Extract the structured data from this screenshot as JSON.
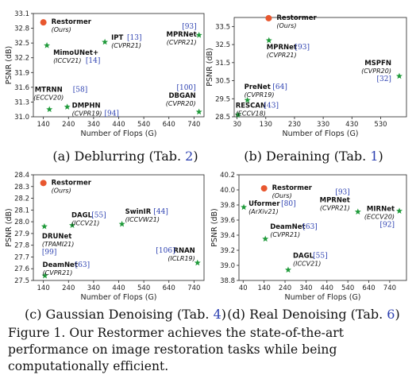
{
  "figure": {
    "caption_label": "Figure 1.",
    "caption_text": "Our Restormer achieves the state-of-the-art performance on image restoration tasks while being computationally efficient."
  },
  "styles": {
    "proposed_color": "#e8572f",
    "baseline_color": "#1f9a3a",
    "ref_color": "#2b3fb0"
  },
  "chart_data": [
    {
      "type": "scatter",
      "caption": {
        "text": "(a) Deblurring (Tab.",
        "ref": "2",
        "close": ")"
      },
      "xlabel": "Number of Flops (G)",
      "ylabel": "PSNR (dB)",
      "xlim": [
        100,
        780
      ],
      "ylim": [
        31.0,
        33.1
      ],
      "xticks": [
        140,
        240,
        340,
        440,
        540,
        640,
        740
      ],
      "yticks": [
        31.0,
        31.3,
        31.6,
        31.9,
        32.2,
        32.5,
        32.8,
        33.1
      ],
      "grid": false,
      "points": [
        {
          "name": "Restormer",
          "sub": "(Ours)",
          "x": 140,
          "y": 32.92,
          "proposed": true
        },
        {
          "name": "MimoUNet+",
          "sub": "(ICCV21)",
          "ref": "[14]",
          "x": 154,
          "y": 32.45
        },
        {
          "name": "IPT",
          "sub": "(CVPR21)",
          "ref": "[13]",
          "x": 385,
          "y": 32.52
        },
        {
          "name": "MPRNet",
          "sub": "(CVPR21)",
          "ref": "[93]",
          "x": 760,
          "y": 32.66
        },
        {
          "name": "MTRNN",
          "sub": "(ECCV20)",
          "ref": "[58]",
          "x": 164,
          "y": 31.15
        },
        {
          "name": "DMPHN",
          "sub": "(CVPR19)",
          "ref": "[94]",
          "x": 235,
          "y": 31.2
        },
        {
          "name": "DBGAN",
          "sub": "(CVPR20)",
          "ref": "[100]",
          "x": 760,
          "y": 31.1
        }
      ]
    },
    {
      "type": "scatter",
      "caption": {
        "text": "(b) Deraining (Tab.",
        "ref": "1",
        "close": ")"
      },
      "xlabel": "Number of Flops (G)",
      "ylabel": "PSNR (dB)",
      "xlim": [
        20,
        620
      ],
      "ylim": [
        28.5,
        34.0
      ],
      "xticks": [
        30,
        130,
        230,
        330,
        430,
        530
      ],
      "yticks": [
        28.5,
        29.5,
        30.5,
        31.5,
        32.5,
        33.5
      ],
      "grid": false,
      "points": [
        {
          "name": "Restormer",
          "sub": "(Ours)",
          "x": 140,
          "y": 33.96,
          "proposed": true
        },
        {
          "name": "MPRNet",
          "sub": "(CVPR21)",
          "ref": "[93]",
          "x": 141,
          "y": 32.73
        },
        {
          "name": "MSPFN",
          "sub": "(CVPR20)",
          "ref": "[32]",
          "x": 595,
          "y": 30.75
        },
        {
          "name": "PreNet",
          "sub": "(CVPR19)",
          "ref": "[64]",
          "x": 66,
          "y": 29.42
        },
        {
          "name": "RESCAN",
          "sub": "(ECCV18)",
          "ref": "[43]",
          "x": 33,
          "y": 28.6
        }
      ]
    },
    {
      "type": "scatter",
      "caption": {
        "text": "(c) Gaussian Denoising (Tab.",
        "ref": "4",
        "close": ")"
      },
      "xlabel": "Number of Flops (G)",
      "ylabel": "PSNR (dB)",
      "xlim": [
        100,
        780
      ],
      "ylim": [
        27.5,
        28.4
      ],
      "xticks": [
        140,
        240,
        340,
        440,
        540,
        640,
        740
      ],
      "yticks": [
        27.5,
        27.6,
        27.7,
        27.8,
        27.9,
        28.0,
        28.1,
        28.2,
        28.3,
        28.4
      ],
      "grid": false,
      "points": [
        {
          "name": "Restormer",
          "sub": "(Ours)",
          "x": 140,
          "y": 28.33,
          "proposed": true
        },
        {
          "name": "DRUNet",
          "sub": "(TPAMI21)",
          "ref": "[99]",
          "x": 144,
          "y": 27.96
        },
        {
          "name": "DAGL",
          "sub": "(ICCV21)",
          "ref": "[55]",
          "x": 255,
          "y": 27.97
        },
        {
          "name": "SwinIR",
          "sub": "(ICCVW21)",
          "ref": "[44]",
          "x": 453,
          "y": 27.98
        },
        {
          "name": "DeamNet",
          "sub": "(CVPR21)",
          "ref": "[63]",
          "x": 146,
          "y": 27.54
        },
        {
          "name": "RNAN",
          "sub": "(ICLR19)",
          "ref": "[106]",
          "x": 754,
          "y": 27.65
        }
      ]
    },
    {
      "type": "scatter",
      "caption": {
        "text": "(d) Real Denoising (Tab.",
        "ref": "6",
        "close": ")"
      },
      "xlabel": "Number of Flops (G)",
      "ylabel": "PSNR (dB)",
      "xlim": [
        20,
        820
      ],
      "ylim": [
        38.8,
        40.2
      ],
      "xticks": [
        40,
        140,
        240,
        340,
        440,
        540,
        640,
        740
      ],
      "yticks": [
        38.8,
        39.0,
        39.2,
        39.4,
        39.6,
        39.8,
        40.0,
        40.2
      ],
      "grid": false,
      "points": [
        {
          "name": "Restormer",
          "sub": "(Ours)",
          "x": 140,
          "y": 40.02,
          "proposed": true
        },
        {
          "name": "Uformer",
          "sub": "(ArXiv21)",
          "ref": "[80]",
          "x": 43,
          "y": 39.77
        },
        {
          "name": "MPRNet",
          "sub": "(CVPR21)",
          "ref": "[93]",
          "x": 588,
          "y": 39.71
        },
        {
          "name": "MIRNet",
          "sub": "(ECCV20)",
          "ref": "[92]",
          "x": 786,
          "y": 39.72
        },
        {
          "name": "DeamNet",
          "sub": "(CVPR21)",
          "ref": "[63]",
          "x": 146,
          "y": 39.35
        },
        {
          "name": "DAGL",
          "sub": "(ICCV21)",
          "ref": "[55]",
          "x": 255,
          "y": 38.94
        }
      ]
    }
  ]
}
